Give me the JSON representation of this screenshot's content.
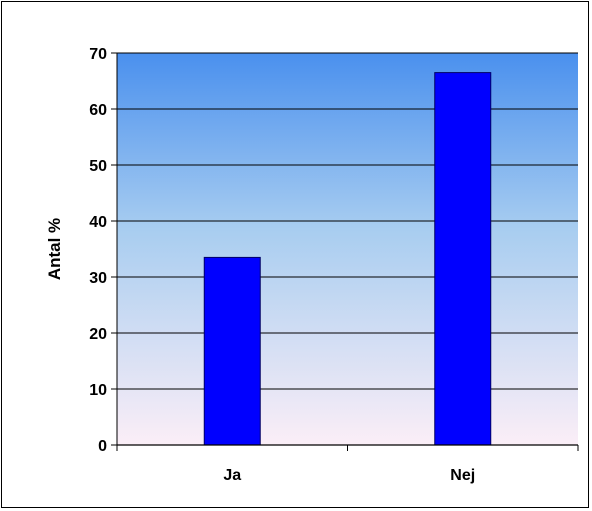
{
  "chart_data": {
    "type": "bar",
    "title": "",
    "xlabel": "",
    "ylabel": "Antal %",
    "categories": [
      "Ja",
      "Nej"
    ],
    "values": [
      33.5,
      66.5
    ],
    "ylim": [
      0,
      70
    ],
    "yticks": [
      0,
      10,
      20,
      30,
      40,
      50,
      60,
      70
    ],
    "grid": true,
    "legend": "none",
    "colors": {
      "bar_fill": "#0000ff",
      "bar_stroke": "#000066",
      "gridline": "#000000",
      "plot_top": "#4a90ee",
      "plot_mid": "#a8cdf0",
      "plot_bottom": "#fbeef7"
    }
  }
}
